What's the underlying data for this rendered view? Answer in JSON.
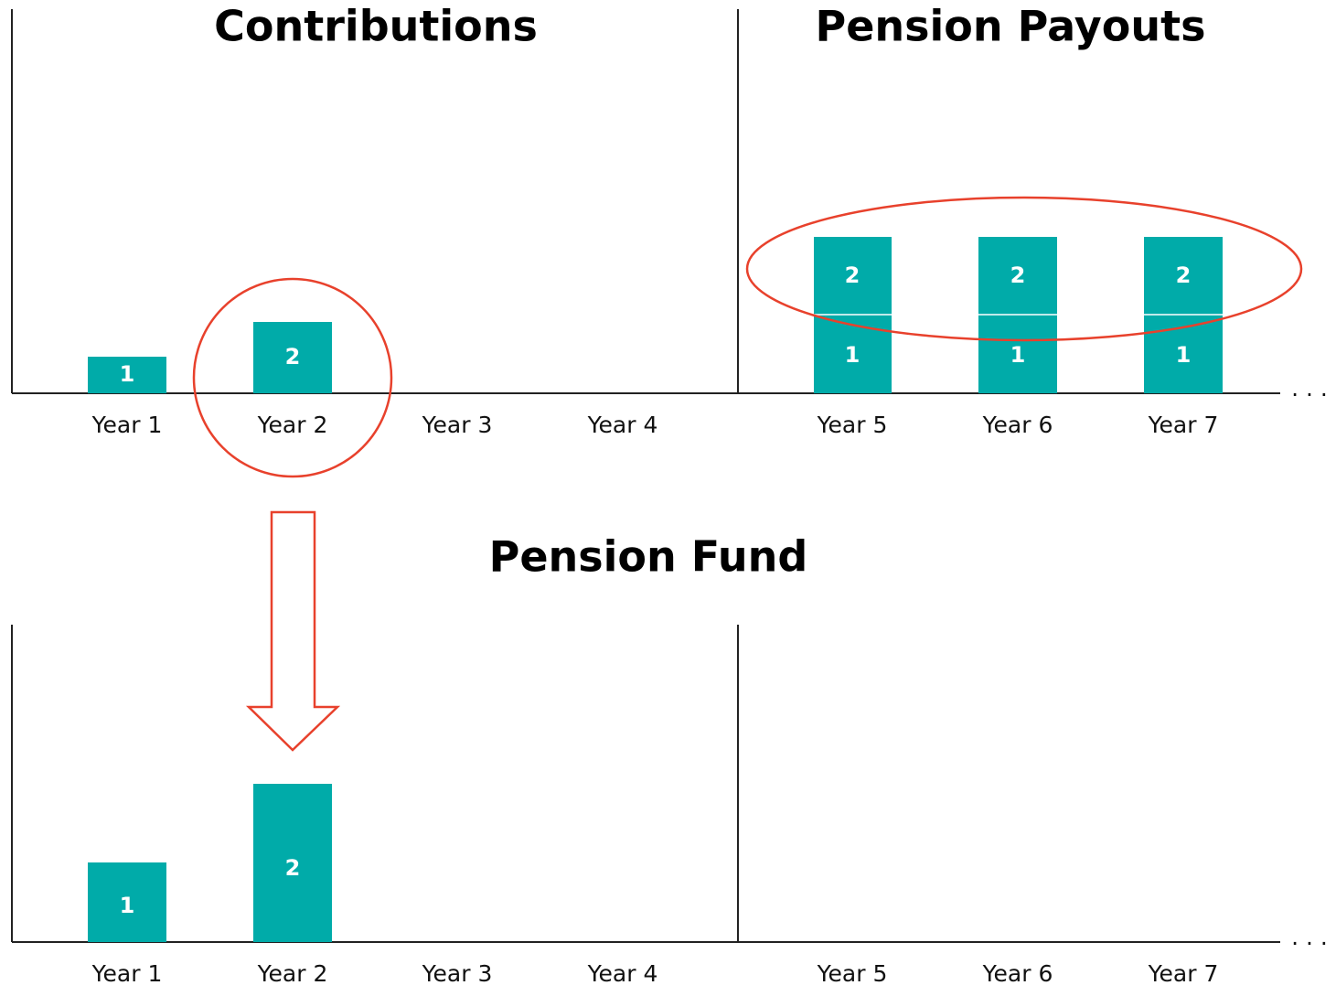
{
  "contributions": {
    "title": "Contributions",
    "bars": [
      "1",
      "2"
    ]
  },
  "payouts": {
    "title": "Pension Payouts",
    "bars": [
      [
        "1",
        "2"
      ],
      [
        "1",
        "2"
      ],
      [
        "1",
        "2"
      ]
    ]
  },
  "fund": {
    "title": "Pension Fund",
    "bars": [
      "1",
      "2"
    ]
  },
  "top_axis": {
    "years": [
      "Year 1",
      "Year 2",
      "Year 3",
      "Year 4",
      "Year 5",
      "Year 6",
      "Year 7"
    ],
    "continuation": ". . ."
  },
  "bottom_axis": {
    "years": [
      "Year 1",
      "Year 2",
      "Year 3",
      "Year 4",
      "Year 5",
      "Year 6",
      "Year 7"
    ],
    "continuation": ". . ."
  }
}
